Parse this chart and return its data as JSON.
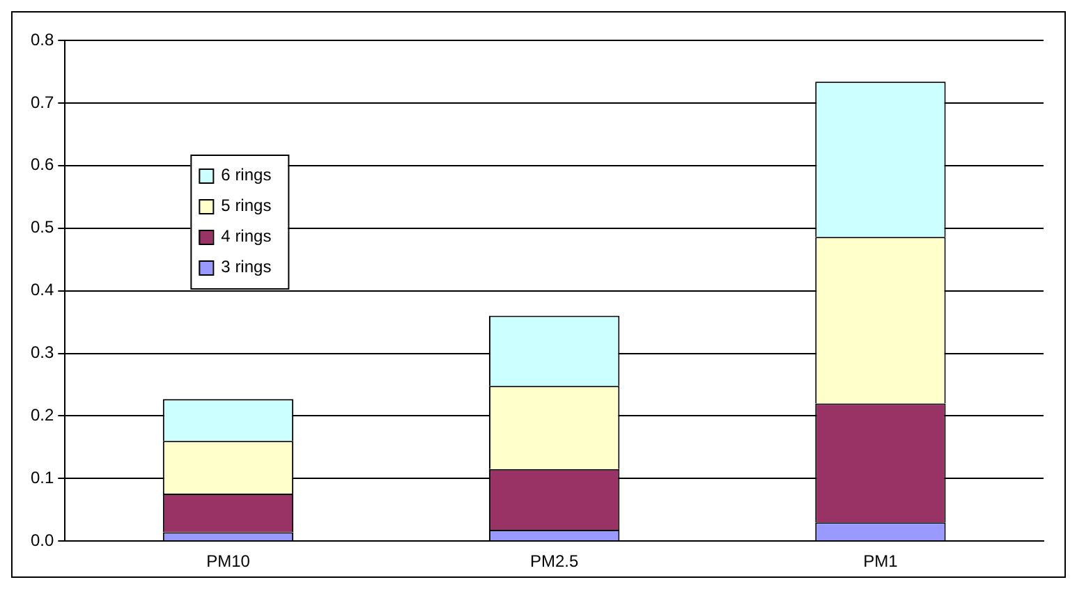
{
  "chart_data": {
    "type": "bar",
    "stacked": true,
    "categories": [
      "PM10",
      "PM2.5",
      "PM1"
    ],
    "series": [
      {
        "name": "3 rings",
        "color": "#9999ff",
        "values": [
          0.014,
          0.018,
          0.03
        ]
      },
      {
        "name": "4 rings",
        "color": "#993366",
        "values": [
          0.062,
          0.097,
          0.19
        ]
      },
      {
        "name": "5 rings",
        "color": "#ffffcc",
        "values": [
          0.084,
          0.133,
          0.266
        ]
      },
      {
        "name": "6 rings",
        "color": "#ccffff",
        "values": [
          0.067,
          0.112,
          0.248
        ]
      }
    ],
    "ylim": [
      0,
      0.8
    ],
    "yticks": [
      {
        "value": 0,
        "label": "0.0"
      },
      0.1,
      0.2,
      0.3,
      0.4,
      0.5,
      0.6,
      0.7,
      0.8
    ],
    "grid": "y",
    "legend": "top left"
  }
}
